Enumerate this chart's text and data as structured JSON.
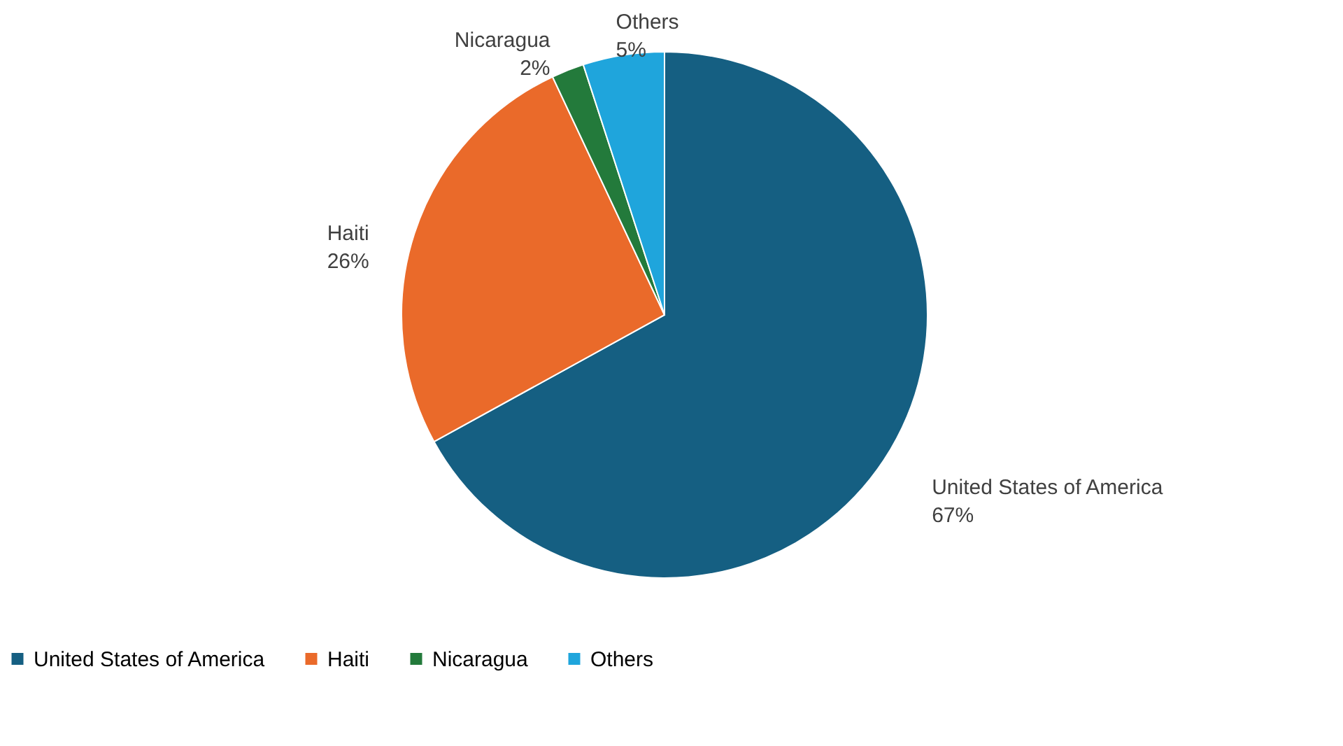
{
  "chart_data": {
    "type": "pie",
    "categories": [
      "United States of America",
      "Haiti",
      "Nicaragua",
      "Others"
    ],
    "values": [
      67,
      26,
      2,
      5
    ],
    "colors": [
      "#155f82",
      "#ea6a2a",
      "#237a3b",
      "#1fa5dc"
    ],
    "value_labels": [
      "67%",
      "26%",
      "2%",
      "5%"
    ],
    "legend": "bottom"
  }
}
